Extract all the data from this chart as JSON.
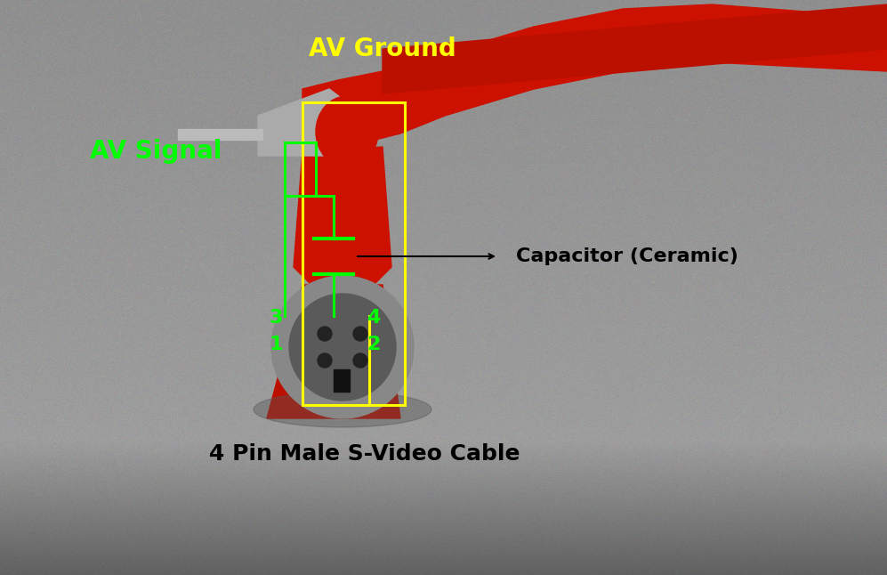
{
  "fig_width": 9.97,
  "fig_height": 6.46,
  "dpi": 100,
  "av_ground_label": "AV Ground",
  "av_ground_color": "#ffff00",
  "av_ground_fontsize": 20,
  "av_signal_label": "AV Signal",
  "av_signal_color": "#00ff00",
  "av_signal_fontsize": 20,
  "capacitor_label": "Capacitor (Ceramic)",
  "capacitor_color": "#000000",
  "capacitor_fontsize": 16,
  "svideo_label": "4 Pin Male S-Video Cable",
  "svideo_color": "#000000",
  "svideo_fontsize": 18,
  "pin_color": "#00ff00",
  "pin_fontsize": 16,
  "yellow_color": "#ffff00",
  "yellow_linewidth": 2.2,
  "green_line_color": "#00ff00",
  "green_linewidth": 2.2
}
